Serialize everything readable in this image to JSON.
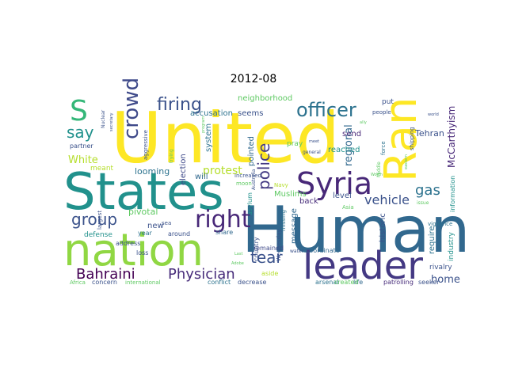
{
  "title": "2012-08",
  "words": [
    {
      "text": "United",
      "color": "#fde725",
      "rotate": 0
    },
    {
      "text": "Human",
      "color": "#31688e",
      "rotate": 0
    },
    {
      "text": "States",
      "color": "#21918c",
      "rotate": 0
    },
    {
      "text": "nation",
      "color": "#90d743",
      "rotate": 0
    },
    {
      "text": "Ran",
      "color": "#fde725",
      "rotate": 90
    },
    {
      "text": "leader",
      "color": "#443983",
      "rotate": 0
    },
    {
      "text": "Syria",
      "color": "#482878",
      "rotate": 0
    },
    {
      "text": "S",
      "color": "#35b779",
      "rotate": 0
    },
    {
      "text": "officer",
      "color": "#2c728e",
      "rotate": 0
    },
    {
      "text": "firing",
      "color": "#3b528b",
      "rotate": 0
    },
    {
      "text": "right",
      "color": "#482878",
      "rotate": 0
    },
    {
      "text": "crowd",
      "color": "#3e4989",
      "rotate": 90
    },
    {
      "text": "Bahraini",
      "color": "#440154",
      "rotate": 0
    },
    {
      "text": "Physician",
      "color": "#472c7a",
      "rotate": 0
    },
    {
      "text": "tear",
      "color": "#3b528b",
      "rotate": 0
    },
    {
      "text": "police",
      "color": "#443a83",
      "rotate": 90
    },
    {
      "text": "gas",
      "color": "#2c728e",
      "rotate": 0
    },
    {
      "text": "group",
      "color": "#3b528b",
      "rotate": 0
    },
    {
      "text": "say",
      "color": "#21918c",
      "rotate": 0
    },
    {
      "text": "vehicle",
      "color": "#3b528b",
      "rotate": 0
    },
    {
      "text": "protest",
      "color": "#b5de2b",
      "rotate": 0
    },
    {
      "text": "home",
      "color": "#3b528b",
      "rotate": 0
    },
    {
      "text": "regional",
      "color": "#31688e",
      "rotate": 90
    },
    {
      "text": "White",
      "color": "#b5de2b",
      "rotate": 0
    },
    {
      "text": "McCarthyism",
      "color": "#482878",
      "rotate": 90
    },
    {
      "text": "Tehran",
      "color": "#3b528b",
      "rotate": 0
    },
    {
      "text": "neighborhood",
      "color": "#5ec962",
      "rotate": 0
    },
    {
      "text": "accusation",
      "color": "#2c728e",
      "rotate": 0
    },
    {
      "text": "seems",
      "color": "#3b528b",
      "rotate": 0
    },
    {
      "text": "system",
      "color": "#2c728e",
      "rotate": 90
    },
    {
      "text": "will",
      "color": "#31688e",
      "rotate": 0
    },
    {
      "text": "election",
      "color": "#3e4989",
      "rotate": 90
    },
    {
      "text": "reached",
      "color": "#21918c",
      "rotate": 0
    },
    {
      "text": "send",
      "color": "#482878",
      "rotate": 0
    },
    {
      "text": "pointed",
      "color": "#31688e",
      "rotate": 90
    },
    {
      "text": "level",
      "color": "#3b528b",
      "rotate": 0
    },
    {
      "text": "back",
      "color": "#472c7a",
      "rotate": 0
    },
    {
      "text": "Muslims",
      "color": "#5ec962",
      "rotate": 0
    },
    {
      "text": "message",
      "color": "#31688e",
      "rotate": 90
    },
    {
      "text": "historic",
      "color": "#3b528b",
      "rotate": 90
    },
    {
      "text": "require",
      "color": "#2c728e",
      "rotate": 90
    },
    {
      "text": "industry",
      "color": "#21918c",
      "rotate": 90
    },
    {
      "text": "rivalry",
      "color": "#3b528b",
      "rotate": 0
    },
    {
      "text": "information",
      "color": "#21918c",
      "rotate": 90
    },
    {
      "text": "looming",
      "color": "#2c728e",
      "rotate": 0
    },
    {
      "text": "pivotal",
      "color": "#5ec962",
      "rotate": 0
    },
    {
      "text": "new",
      "color": "#3b528b",
      "rotate": 0
    },
    {
      "text": "defense",
      "color": "#21918c",
      "rotate": 0
    },
    {
      "text": "address",
      "color": "#3b528b",
      "rotate": 0
    },
    {
      "text": "year",
      "color": "#2c728e",
      "rotate": 0
    },
    {
      "text": "around",
      "color": "#3b528b",
      "rotate": 0
    },
    {
      "text": "share",
      "color": "#31688e",
      "rotate": 0
    },
    {
      "text": "asylum",
      "color": "#21918c",
      "rotate": 90
    },
    {
      "text": "country",
      "color": "#3b528b",
      "rotate": 90
    },
    {
      "text": "remained",
      "color": "#3e4989",
      "rotate": 0
    },
    {
      "text": "coordinate",
      "color": "#31688e",
      "rotate": 0
    },
    {
      "text": "Wednesday",
      "color": "#3b528b",
      "rotate": 90
    },
    {
      "text": "missing",
      "color": "#2c728e",
      "rotate": 90
    },
    {
      "text": "pray",
      "color": "#5ec962",
      "rotate": 0
    },
    {
      "text": "aside",
      "color": "#b5de2b",
      "rotate": 0
    },
    {
      "text": "arsenal",
      "color": "#2c728e",
      "rotate": 0
    },
    {
      "text": "life",
      "color": "#31688e",
      "rotate": 0
    },
    {
      "text": "created",
      "color": "#5ec962",
      "rotate": 0
    },
    {
      "text": "patrolling",
      "color": "#472c7a",
      "rotate": 0
    },
    {
      "text": "seeker",
      "color": "#3b528b",
      "rotate": 0
    },
    {
      "text": "conflict",
      "color": "#2c728e",
      "rotate": 0
    },
    {
      "text": "decrease",
      "color": "#3b528b",
      "rotate": 0
    },
    {
      "text": "concern",
      "color": "#3b528b",
      "rotate": 0
    },
    {
      "text": "international",
      "color": "#5ec962",
      "rotate": 0
    },
    {
      "text": "Africa",
      "color": "#5ec962",
      "rotate": 0
    },
    {
      "text": "loss",
      "color": "#3b528b",
      "rotate": 0
    },
    {
      "text": "largest",
      "color": "#3b528b",
      "rotate": 90
    },
    {
      "text": "meant",
      "color": "#b5de2b",
      "rotate": 0
    },
    {
      "text": "partner",
      "color": "#3b528b",
      "rotate": 0
    },
    {
      "text": "aggressive",
      "color": "#3b528b",
      "rotate": 90
    },
    {
      "text": "trying",
      "color": "#5ec962",
      "rotate": 90
    },
    {
      "text": "increased",
      "color": "#3b528b",
      "rotate": 0
    },
    {
      "text": "moon",
      "color": "#5ec962",
      "rotate": 0
    },
    {
      "text": "Australia",
      "color": "#3b528b",
      "rotate": 90
    },
    {
      "text": "Navy",
      "color": "#b5de2b",
      "rotate": 0
    },
    {
      "text": "put",
      "color": "#3b528b",
      "rotate": 0
    },
    {
      "text": "people",
      "color": "#3b528b",
      "rotate": 0
    },
    {
      "text": "shipping",
      "color": "#3b528b",
      "rotate": 90
    },
    {
      "text": "force",
      "color": "#2c728e",
      "rotate": 90
    },
    {
      "text": "vigilance",
      "color": "#2c728e",
      "rotate": 0
    },
    {
      "text": "issue",
      "color": "#5ec962",
      "rotate": 0
    },
    {
      "text": "general",
      "color": "#3b528b",
      "rotate": 0
    },
    {
      "text": "Asia",
      "color": "#5ec962",
      "rotate": 0
    },
    {
      "text": "sea",
      "color": "#3b528b",
      "rotate": 0
    },
    {
      "text": "water",
      "color": "#3b528b",
      "rotate": 0
    },
    {
      "text": "Nuclear",
      "color": "#3b528b",
      "rotate": 90
    },
    {
      "text": "secretary",
      "color": "#3b528b",
      "rotate": 90
    },
    {
      "text": "program",
      "color": "#5ec962",
      "rotate": 90
    },
    {
      "text": "meet",
      "color": "#3b528b",
      "rotate": 0
    },
    {
      "text": "world",
      "color": "#3b528b",
      "rotate": 0
    },
    {
      "text": "ally",
      "color": "#5ec962",
      "rotate": 0
    },
    {
      "text": "Middle",
      "color": "#5ec962",
      "rotate": 90
    },
    {
      "text": "Worth",
      "color": "#5ec962",
      "rotate": 0
    },
    {
      "text": "eastern",
      "color": "#5ec962",
      "rotate": 90
    },
    {
      "text": "Last",
      "color": "#5ec962",
      "rotate": 0
    },
    {
      "text": "Adobe",
      "color": "#5ec962",
      "rotate": 0
    }
  ]
}
